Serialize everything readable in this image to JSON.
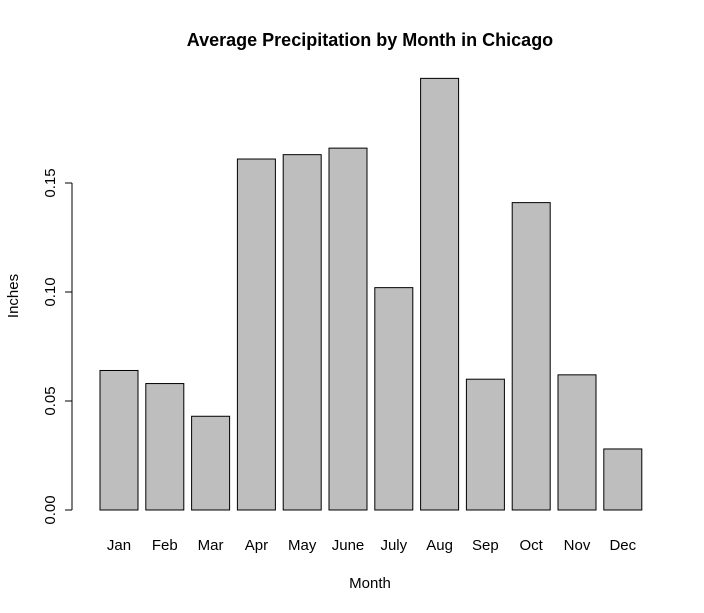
{
  "chart_data": {
    "type": "bar",
    "title": "Average Precipitation by Month in Chicago",
    "xlabel": "Month",
    "ylabel": "Inches",
    "categories": [
      "Jan",
      "Feb",
      "Mar",
      "Apr",
      "May",
      "June",
      "July",
      "Aug",
      "Sep",
      "Oct",
      "Nov",
      "Dec"
    ],
    "values": [
      0.064,
      0.058,
      0.043,
      0.161,
      0.163,
      0.166,
      0.102,
      0.198,
      0.06,
      0.141,
      0.062,
      0.028
    ],
    "ylim": [
      0,
      0.2
    ],
    "yticks": [
      0.0,
      0.05,
      0.1,
      0.15
    ],
    "ytick_labels": [
      "0.00",
      "0.05",
      "0.10",
      "0.15"
    ],
    "grid": false,
    "legend": "none",
    "colors": {
      "bar_fill": "#bebebe",
      "bar_stroke": "#000000"
    }
  }
}
